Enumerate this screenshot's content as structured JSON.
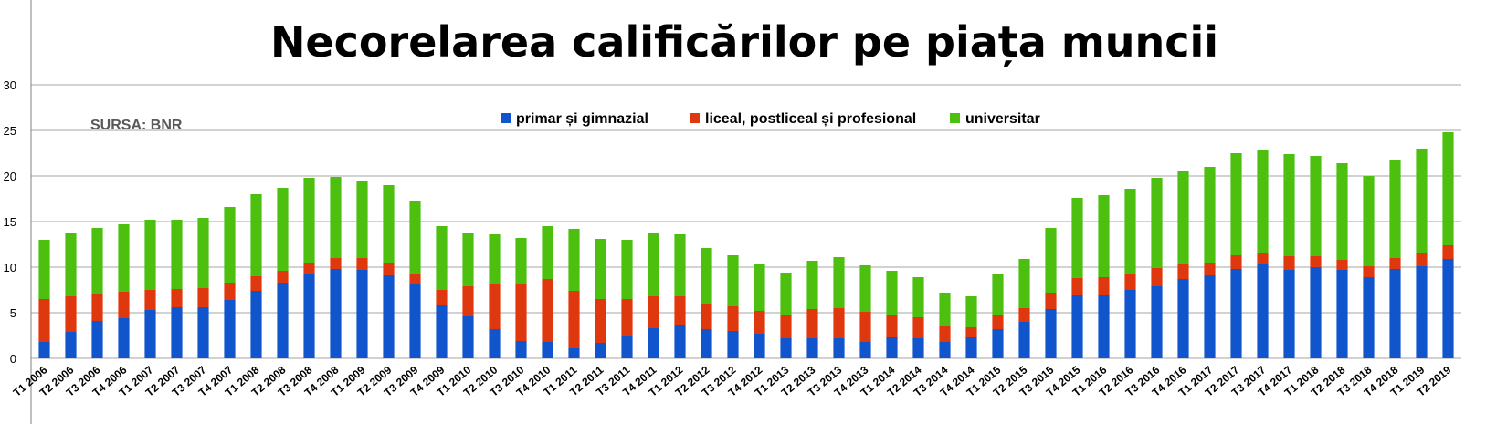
{
  "chart_data": {
    "type": "bar",
    "stacked": true,
    "title": "Necorelarea calificărilor pe piața muncii",
    "source_note": "SURSA: BNR",
    "ylim": [
      0,
      30
    ],
    "yticks": [
      "0",
      "5",
      "10",
      "15",
      "20",
      "25",
      "30"
    ],
    "grid": true,
    "legend_position": "top-center",
    "categories": [
      "T1 2006",
      "T2 2006",
      "T3 2006",
      "T4 2006",
      "T1 2007",
      "T2 2007",
      "T3 2007",
      "T4 2007",
      "T1 2008",
      "T2 2008",
      "T3 2008",
      "T4 2008",
      "T1 2009",
      "T2 2009",
      "T3 2009",
      "T4 2009",
      "T1 2010",
      "T2 2010",
      "T3 2010",
      "T4 2010",
      "T1 2011",
      "T2 2011",
      "T3 2011",
      "T4 2011",
      "T1 2012",
      "T2 2012",
      "T3 2012",
      "T4 2012",
      "T1 2013",
      "T2 2013",
      "T3 2013",
      "T4 2013",
      "T1 2014",
      "T2 2014",
      "T3 2014",
      "T4 2014",
      "T1 2015",
      "T2 2015",
      "T3 2015",
      "T4 2015",
      "T1 2016",
      "T2 2016",
      "T3 2016",
      "T4 2016",
      "T1 2017",
      "T2 2017",
      "T3 2017",
      "T4 2017",
      "T1 2018",
      "T2 2018",
      "T3 2018",
      "T4 2018",
      "T1 2019",
      "T2 2019"
    ],
    "series": [
      {
        "name": "primar și gimnazial",
        "color": "#1155cc",
        "values": [
          1.8,
          2.9,
          4.1,
          4.4,
          5.3,
          5.6,
          5.6,
          6.4,
          7.4,
          8.3,
          9.3,
          9.8,
          9.7,
          9.1,
          8.1,
          5.9,
          4.6,
          3.2,
          1.9,
          1.8,
          1.1,
          1.7,
          2.4,
          3.3,
          3.7,
          3.2,
          3.0,
          2.7,
          2.2,
          2.2,
          2.2,
          1.8,
          2.3,
          2.2,
          1.8,
          2.3,
          3.2,
          4.0,
          5.4,
          6.9,
          7.0,
          7.5,
          7.9,
          8.7,
          9.1,
          9.8,
          10.3,
          9.7,
          10.0,
          9.7,
          8.9,
          9.8,
          10.1,
          10.9
        ]
      },
      {
        "name": "liceal, postliceal și profesional",
        "color": "#e0380e",
        "values": [
          4.7,
          3.9,
          3.0,
          2.9,
          2.2,
          2.0,
          2.1,
          1.9,
          1.6,
          1.3,
          1.2,
          1.2,
          1.3,
          1.4,
          1.2,
          1.6,
          3.3,
          5.0,
          6.2,
          6.9,
          6.3,
          4.8,
          4.1,
          3.5,
          3.1,
          2.8,
          2.7,
          2.5,
          2.5,
          3.2,
          3.3,
          3.3,
          2.5,
          2.3,
          1.8,
          1.1,
          1.5,
          1.5,
          1.8,
          1.9,
          1.9,
          1.8,
          2.0,
          1.7,
          1.4,
          1.5,
          1.2,
          1.5,
          1.2,
          1.1,
          1.2,
          1.2,
          1.4,
          1.5
        ]
      },
      {
        "name": "universitar",
        "color": "#4cbf0f",
        "values": [
          6.5,
          6.9,
          7.2,
          7.4,
          7.7,
          7.6,
          7.7,
          8.3,
          9.0,
          9.1,
          9.3,
          8.9,
          8.4,
          8.5,
          8.0,
          7.0,
          5.9,
          5.4,
          5.1,
          5.8,
          6.8,
          6.6,
          6.5,
          6.9,
          6.8,
          6.1,
          5.6,
          5.2,
          4.7,
          5.3,
          5.6,
          5.1,
          4.8,
          4.4,
          3.6,
          3.4,
          4.6,
          5.4,
          7.1,
          8.8,
          9.0,
          9.3,
          9.9,
          10.2,
          10.5,
          11.2,
          11.4,
          11.2,
          11.0,
          10.6,
          9.9,
          10.8,
          11.5,
          12.4
        ]
      }
    ]
  }
}
